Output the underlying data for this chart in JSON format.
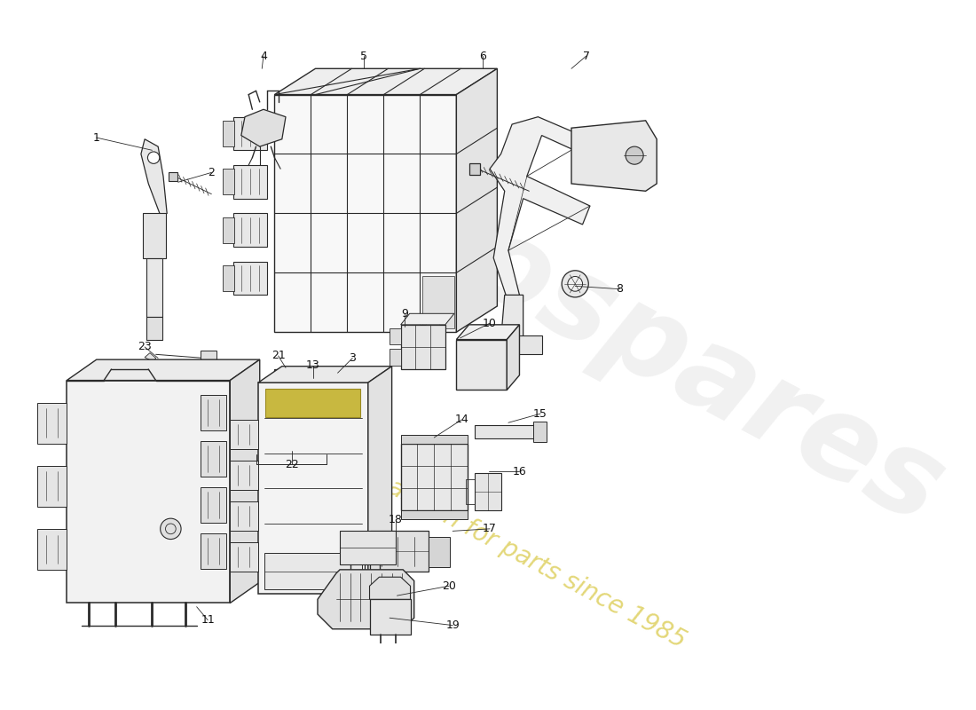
{
  "bg_color": "#ffffff",
  "lc": "#2a2a2a",
  "wm1": "eurospares",
  "wm2": "a passion for parts since 1985",
  "wmc1": "#cccccc",
  "wmc2": "#d4c230",
  "figsize": [
    11.0,
    8.0
  ],
  "dpi": 100
}
